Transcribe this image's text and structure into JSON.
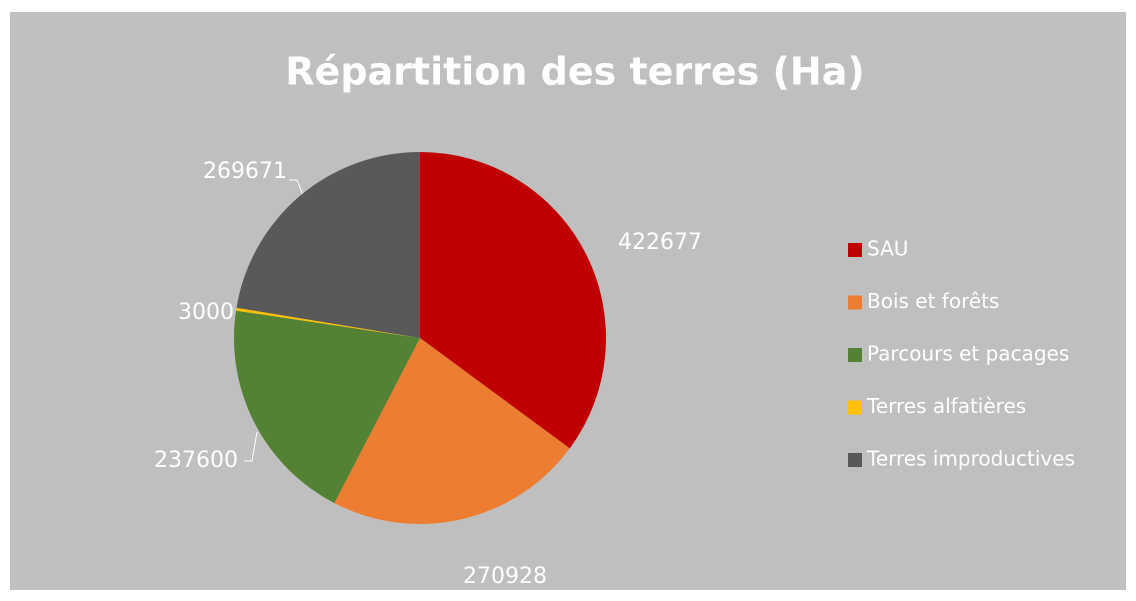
{
  "chart_data": {
    "type": "pie",
    "title": "Répartition des terres (Ha)",
    "categories": [
      "SAU",
      "Bois et forêts",
      "Parcours et pacages",
      "Terres alfatières",
      "Terres improductives"
    ],
    "values": [
      422677,
      270928,
      237600,
      3000,
      269671
    ],
    "colors": [
      "#c00000",
      "#ed7d31",
      "#548235",
      "#ffc000",
      "#595959"
    ],
    "legend": "right"
  }
}
